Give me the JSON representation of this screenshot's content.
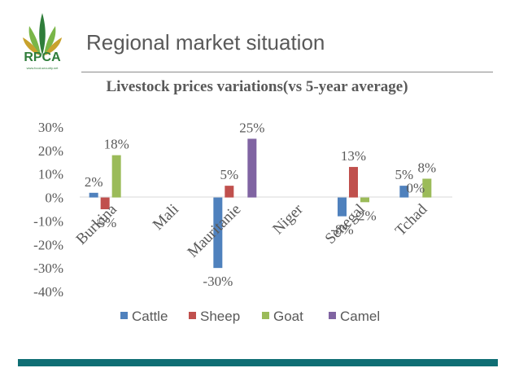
{
  "header": {
    "title": "Regional market situation",
    "logo_text": "RPCA",
    "logo_subtext": "www.food-security.net"
  },
  "colors": {
    "Cattle": "#4f81bd",
    "Sheep": "#c0504d",
    "Goat": "#9bbb59",
    "Camel": "#8064a2",
    "footer": "#0f6e74",
    "logo": "#2f7d3a"
  },
  "chart_data": {
    "type": "bar",
    "title": "Livestock prices variations(vs 5-year average)",
    "categories": [
      "Burkina",
      "Mali",
      "Mauritanie",
      "Niger",
      "Senegal",
      "Tchad"
    ],
    "series": [
      {
        "name": "Cattle",
        "values": [
          2,
          null,
          -30,
          null,
          -8,
          5
        ],
        "labels": [
          "2%",
          "",
          "-30%",
          "",
          "-8%",
          "5%"
        ]
      },
      {
        "name": "Sheep",
        "values": [
          -5,
          null,
          5,
          null,
          13,
          0
        ],
        "labels": [
          "-5%",
          "",
          "5%",
          "",
          "13%",
          "0%"
        ]
      },
      {
        "name": "Goat",
        "values": [
          18,
          null,
          null,
          null,
          -2,
          8
        ],
        "labels": [
          "18%",
          "",
          "",
          "",
          "-2%",
          "8%"
        ]
      },
      {
        "name": "Camel",
        "values": [
          null,
          null,
          25,
          null,
          null,
          null
        ],
        "labels": [
          "",
          "",
          "25%",
          "",
          "",
          ""
        ]
      }
    ],
    "yticks": [
      "30%",
      "20%",
      "10%",
      "0%",
      "-10%",
      "-20%",
      "-30%",
      "-40%"
    ],
    "ylim": [
      -40,
      30
    ],
    "legend_position": "bottom",
    "grid": false
  }
}
